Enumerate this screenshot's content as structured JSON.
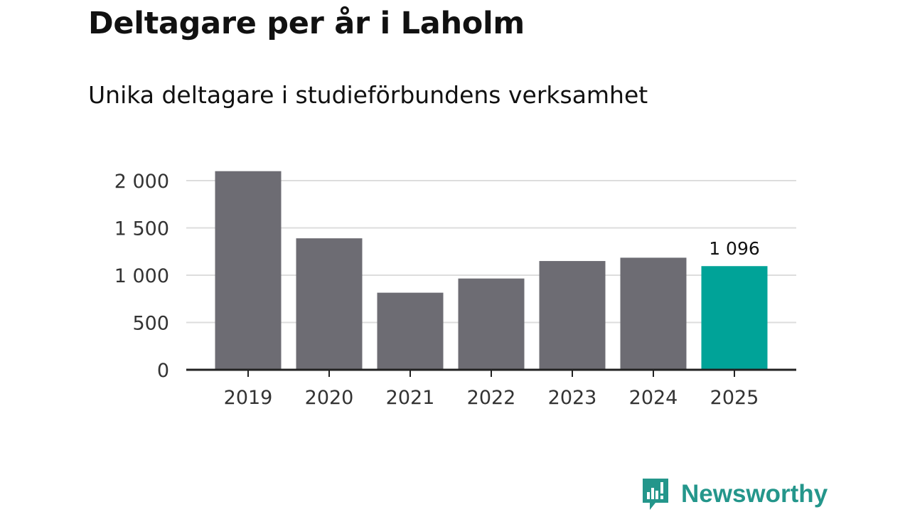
{
  "title": "Deltagare per år i Laholm",
  "subtitle": "Unika deltagare i studieförbundens verksamhet",
  "chart_data": {
    "type": "bar",
    "categories": [
      "2019",
      "2020",
      "2021",
      "2022",
      "2023",
      "2024",
      "2025"
    ],
    "values": [
      2100,
      1390,
      815,
      965,
      1150,
      1185,
      1096
    ],
    "ylim": [
      0,
      2000
    ],
    "yticks": [
      0,
      500,
      1000,
      1500,
      2000
    ],
    "ytick_labels": [
      "0",
      "500",
      "1 000",
      "1 500",
      "2 000"
    ],
    "highlight_index": 6,
    "highlight_label": "1 096",
    "grid": true,
    "colors": {
      "bar": "#6d6c73",
      "highlight": "#00a398",
      "grid": "#dddddd",
      "axis": "#222222",
      "text": "#333333"
    }
  },
  "brand": {
    "name": "Newsworthy",
    "icon": "newsworthy-logo-icon",
    "color": "#24968b"
  }
}
